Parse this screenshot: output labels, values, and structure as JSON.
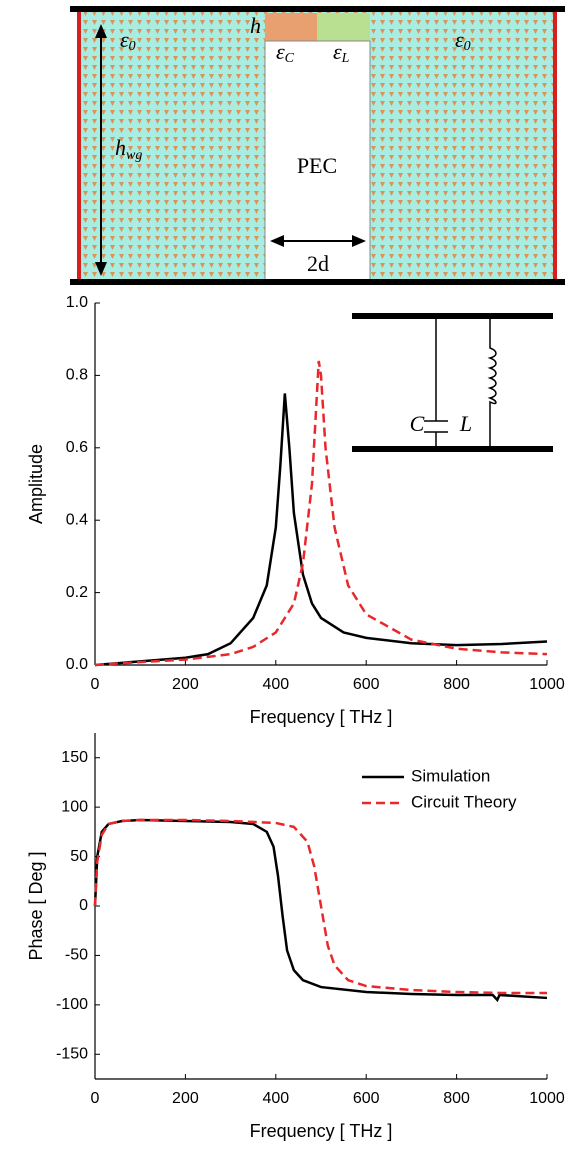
{
  "diagram": {
    "eps_left": {
      "base": "ε",
      "sub": "0"
    },
    "h": "h",
    "eps_c": {
      "base": "ε",
      "sub": "C"
    },
    "eps_l": {
      "base": "ε",
      "sub": "L"
    },
    "eps_right": {
      "base": "ε",
      "sub": "0"
    },
    "h_wg": {
      "base": "h",
      "sub": "wg"
    },
    "pec": "PEC",
    "width": "2d"
  },
  "chart_data": [
    {
      "type": "line",
      "xlabel": "Frequency [ THz ]",
      "ylabel": "Amplitude",
      "xlim": [
        0,
        1000
      ],
      "xticks": [
        0,
        200,
        400,
        600,
        800,
        1000
      ],
      "ylim": [
        0,
        1
      ],
      "yticks": [
        {
          "value": 0,
          "label": "0.0"
        },
        {
          "value": 0.2,
          "label": "0.2"
        },
        {
          "value": 0.4,
          "label": "0.4"
        },
        {
          "value": 0.6,
          "label": "0.6"
        },
        {
          "value": 0.8,
          "label": "0.8"
        },
        {
          "value": 1,
          "label": "1.0"
        }
      ],
      "annotations": [
        "C",
        "L"
      ],
      "series": [
        {
          "color": "#000000",
          "dash": false,
          "x": [
            0,
            100,
            200,
            250,
            300,
            350,
            380,
            400,
            410,
            420,
            430,
            440,
            460,
            480,
            500,
            550,
            600,
            700,
            800,
            900,
            1000
          ],
          "values": [
            0,
            0.01,
            0.02,
            0.03,
            0.06,
            0.13,
            0.22,
            0.38,
            0.55,
            0.75,
            0.6,
            0.42,
            0.25,
            0.17,
            0.13,
            0.09,
            0.075,
            0.06,
            0.055,
            0.058,
            0.065
          ]
        },
        {
          "color": "#e8282b",
          "dash": true,
          "x": [
            0,
            100,
            200,
            300,
            350,
            400,
            440,
            460,
            480,
            495,
            500,
            510,
            530,
            560,
            600,
            700,
            800,
            900,
            1000
          ],
          "values": [
            0,
            0.008,
            0.015,
            0.03,
            0.05,
            0.09,
            0.17,
            0.28,
            0.5,
            0.84,
            0.8,
            0.6,
            0.38,
            0.22,
            0.14,
            0.07,
            0.045,
            0.035,
            0.03
          ]
        }
      ]
    },
    {
      "type": "line",
      "xlabel": "Frequency [ THz ]",
      "ylabel": "Phase [ Deg ]",
      "xlim": [
        0,
        1000
      ],
      "xticks": [
        0,
        200,
        400,
        600,
        800,
        1000
      ],
      "ylim": [
        -175,
        175
      ],
      "yticks": [
        -150,
        -100,
        -50,
        0,
        50,
        100,
        150
      ],
      "series": [
        {
          "name": "Simulation",
          "color": "#000000",
          "dash": false,
          "x": [
            0,
            5,
            15,
            30,
            60,
            100,
            200,
            300,
            350,
            380,
            395,
            405,
            415,
            425,
            440,
            460,
            500,
            600,
            700,
            800,
            880,
            890,
            895,
            1000
          ],
          "values": [
            0,
            50,
            75,
            83,
            86,
            87,
            86,
            85,
            83,
            75,
            60,
            30,
            -10,
            -45,
            -65,
            -75,
            -82,
            -87,
            -89,
            -90,
            -90,
            -95,
            -90,
            -93
          ]
        },
        {
          "name": "Circuit Theory",
          "color": "#e8282b",
          "dash": true,
          "x": [
            0,
            5,
            15,
            30,
            60,
            100,
            200,
            300,
            400,
            440,
            470,
            485,
            500,
            515,
            530,
            560,
            600,
            700,
            800,
            900,
            1000
          ],
          "values": [
            0,
            45,
            72,
            83,
            86,
            87,
            87,
            86,
            84,
            80,
            65,
            40,
            0,
            -40,
            -60,
            -75,
            -81,
            -85,
            -87,
            -88,
            -88
          ]
        }
      ]
    }
  ]
}
